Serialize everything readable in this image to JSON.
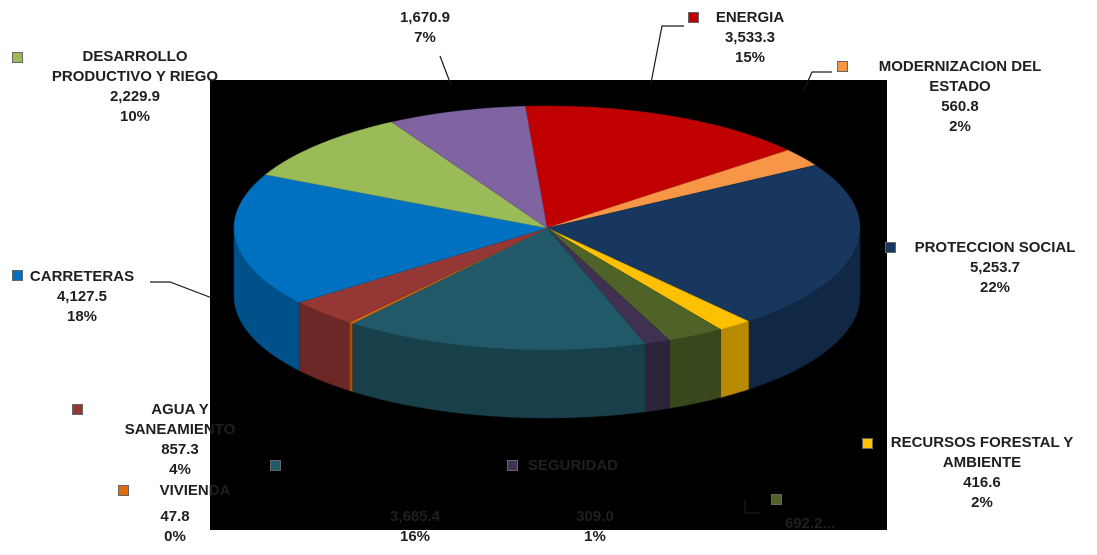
{
  "chart_data": {
    "type": "pie",
    "title": "",
    "slices": [
      {
        "name": "ENERGIA",
        "value": 3533.3,
        "value_label": "3,533.3",
        "percent_label": "15%",
        "color": "#c00000"
      },
      {
        "name": "MODERNIZACION DEL ESTADO",
        "value": 560.8,
        "value_label": "560.8",
        "percent_label": "2%",
        "color": "#f79646"
      },
      {
        "name": "PROTECCION SOCIAL",
        "value": 5253.7,
        "value_label": "5,253.7",
        "percent_label": "22%",
        "color": "#17375e"
      },
      {
        "name": "RECURSOS FORESTAL Y AMBIENTE",
        "value": 416.6,
        "value_label": "416.6",
        "percent_label": "2%",
        "color": "#ffc000"
      },
      {
        "name": "",
        "value": 692.2,
        "value_label": "692.2...",
        "percent_label": "",
        "color": "#4f6228"
      },
      {
        "name": "SEGURIDAD",
        "value": 309.0,
        "value_label": "309.0",
        "percent_label": "1%",
        "color": "#403151"
      },
      {
        "name": "",
        "value": 3685.4,
        "value_label": "3,685.4",
        "percent_label": "16%",
        "color": "#215968"
      },
      {
        "name": "VIVIENDA",
        "value": 47.8,
        "value_label": "47.8",
        "percent_label": "0%",
        "color": "#e46c0a"
      },
      {
        "name": "AGUA Y SANEAMIENTO",
        "value": 857.3,
        "value_label": "857.3",
        "percent_label": "4%",
        "color": "#953735"
      },
      {
        "name": "CARRETERAS",
        "value": 4127.5,
        "value_label": "4,127.5",
        "percent_label": "18%",
        "color": "#0070c0"
      },
      {
        "name": "DESARROLLO PRODUCTIVO Y RIEGO",
        "value": 2229.9,
        "value_label": "2,229.9",
        "percent_label": "10%",
        "color": "#9bbb59"
      },
      {
        "name": "",
        "value": 1670.9,
        "value_label": "1,670.9",
        "percent_label": "7%",
        "color": "#8064a2"
      }
    ],
    "labels": {
      "energia": {
        "name": "ENERGIA",
        "value": "3,533.3",
        "pct": "15%"
      },
      "modernizacion": {
        "name1": "MODERNIZACION DEL",
        "name2": "ESTADO",
        "value": "560.8",
        "pct": "2%"
      },
      "proteccion": {
        "name": "PROTECCION SOCIAL",
        "value": "5,253.7",
        "pct": "22%"
      },
      "recursos": {
        "name1": "RECURSOS FORESTAL Y",
        "name2": "AMBIENTE",
        "value": "416.6",
        "pct": "2%"
      },
      "slice_692": {
        "value": "692.2..."
      },
      "seguridad": {
        "name": "SEGURIDAD",
        "value": "309.0",
        "pct": "1%"
      },
      "slice_3685": {
        "value": "3,685.4",
        "pct": "16%"
      },
      "vivienda": {
        "name": "VIVIENDA",
        "value": "47.8",
        "pct": "0%"
      },
      "agua": {
        "name1": "AGUA Y",
        "name2": "SANEAMIENTO",
        "value": "857.3",
        "pct": "4%"
      },
      "carreteras": {
        "name": "CARRETERAS",
        "value": "4,127.5",
        "pct": "18%"
      },
      "desarrollo": {
        "name1": "DESARROLLO",
        "name2": "PRODUCTIVO Y RIEGO",
        "value": "2,229.9",
        "pct": "10%"
      },
      "slice_1670": {
        "value": "1,670.9",
        "pct": "7%"
      }
    }
  }
}
